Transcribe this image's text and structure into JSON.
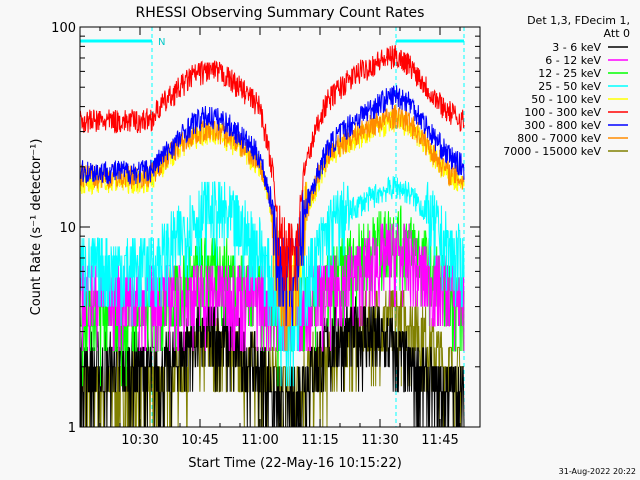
{
  "chart_data": {
    "type": "line",
    "title": "RHESSI Observing Summary Count Rates",
    "xlabel": "Start Time (22-May-16 10:15:22)",
    "ylabel": "Count Rate (s⁻¹ detector⁻¹)",
    "ylim": [
      1,
      100
    ],
    "yscale": "log",
    "xlim_minutes_after_start": [
      0,
      100
    ],
    "x_tick_labels": [
      "10:30",
      "10:45",
      "11:00",
      "11:15",
      "11:30",
      "11:45"
    ],
    "x_tick_minutes": [
      15,
      30,
      45,
      60,
      75,
      90
    ],
    "y_tick_labels": [
      "1",
      "10",
      "100"
    ],
    "y_tick_values": [
      1,
      10,
      100
    ],
    "legend_header": [
      "Det 1,3, FDecim 1,",
      "Att 0"
    ],
    "legend_position": "right",
    "annotation": "N",
    "night_intervals_minutes": [
      [
        0,
        18
      ],
      [
        79,
        96
      ]
    ],
    "footer_date": "31-Aug-2022 20:22",
    "x_minutes": [
      0,
      5,
      10,
      15,
      18,
      20,
      25,
      28,
      32,
      36,
      40,
      45,
      48,
      50,
      52,
      54,
      56,
      60,
      62,
      65,
      70,
      75,
      79,
      82,
      85,
      88,
      92,
      96
    ],
    "series": [
      {
        "name": "3 - 6 keV",
        "color": "#000000",
        "values": [
          2.0,
          2.0,
          2.0,
          2.0,
          2.0,
          1.8,
          2.3,
          2.8,
          3.0,
          2.8,
          2.4,
          2.0,
          1.6,
          1.3,
          1.2,
          1.3,
          1.7,
          2.2,
          2.6,
          2.9,
          3.0,
          2.8,
          2.4,
          2.0,
          1.8,
          1.6,
          1.5,
          1.5
        ]
      },
      {
        "name": "6 - 12 keV",
        "color": "#ff00ff",
        "values": [
          4.6,
          4.6,
          4.6,
          4.6,
          4.6,
          4.5,
          4.6,
          4.7,
          4.8,
          4.7,
          4.6,
          4.5,
          4.2,
          4.0,
          4.0,
          4.0,
          4.3,
          4.5,
          4.7,
          5.2,
          6.0,
          7.0,
          7.5,
          7.0,
          6.0,
          5.2,
          4.8,
          4.6
        ]
      },
      {
        "name": "12 - 25 keV",
        "color": "#00ff00",
        "values": [
          3.5,
          3.5,
          3.5,
          3.5,
          3.6,
          4.0,
          5.0,
          5.8,
          6.3,
          6.1,
          5.4,
          4.6,
          3.8,
          3.3,
          3.2,
          3.3,
          3.8,
          4.5,
          5.2,
          6.0,
          7.3,
          8.5,
          9.0,
          8.5,
          7.3,
          6.0,
          4.8,
          4.0
        ]
      },
      {
        "name": "25 - 50 keV",
        "color": "#00ffff",
        "values": [
          6.3,
          6.3,
          6.3,
          6.3,
          6.4,
          7.0,
          9.0,
          11.0,
          12.0,
          11.5,
          9.8,
          7.8,
          5.2,
          3.5,
          3.2,
          3.5,
          5.2,
          7.8,
          9.8,
          11.2,
          13.0,
          15.0,
          16.0,
          15.0,
          13.0,
          10.5,
          7.8,
          6.5
        ]
      },
      {
        "name": "50 - 100 keV",
        "color": "#ffff00",
        "values": [
          17.0,
          17.0,
          17.0,
          17.0,
          17.5,
          20.0,
          25.0,
          28.0,
          30.0,
          28.5,
          25.0,
          20.0,
          12.0,
          6.0,
          5.0,
          6.0,
          11.0,
          18.0,
          22.0,
          25.0,
          28.5,
          32.0,
          34.0,
          32.0,
          28.0,
          23.0,
          18.0,
          16.0
        ]
      },
      {
        "name": "100 - 300 keV",
        "color": "#ff0000",
        "values": [
          34.0,
          34.0,
          34.0,
          34.0,
          35.0,
          40.0,
          50.0,
          57.0,
          61.0,
          58.0,
          50.0,
          40.0,
          20.0,
          8.5,
          7.0,
          8.5,
          19.0,
          36.0,
          43.0,
          50.0,
          60.0,
          68.0,
          72.0,
          66.0,
          56.0,
          46.0,
          38.0,
          34.0
        ]
      },
      {
        "name": "300 - 800 keV",
        "color": "#0000ff",
        "values": [
          19.0,
          19.0,
          19.0,
          19.0,
          19.5,
          22.0,
          28.0,
          33.0,
          36.0,
          34.0,
          29.0,
          22.5,
          13.0,
          6.5,
          5.5,
          6.5,
          12.0,
          20.0,
          25.0,
          29.5,
          36.0,
          42.0,
          46.0,
          43.0,
          36.0,
          29.0,
          23.0,
          20.0
        ]
      },
      {
        "name": "800 - 7000 keV",
        "color": "#ff8c00",
        "values": [
          18.0,
          18.0,
          18.0,
          18.0,
          18.5,
          21.0,
          26.0,
          29.0,
          31.0,
          29.5,
          26.0,
          21.0,
          12.0,
          5.0,
          4.0,
          5.0,
          11.0,
          19.0,
          23.0,
          26.0,
          30.0,
          34.0,
          36.0,
          34.0,
          29.0,
          24.0,
          19.0,
          17.0
        ]
      },
      {
        "name": "7000 - 15000 keV",
        "color": "#808000",
        "values": [
          1.6,
          1.6,
          1.6,
          1.6,
          1.6,
          1.8,
          2.0,
          2.3,
          2.5,
          2.4,
          2.2,
          2.0,
          1.7,
          1.6,
          1.6,
          1.6,
          1.8,
          2.0,
          2.2,
          2.6,
          3.0,
          3.4,
          3.6,
          3.4,
          3.0,
          2.5,
          2.0,
          1.8
        ]
      }
    ]
  }
}
